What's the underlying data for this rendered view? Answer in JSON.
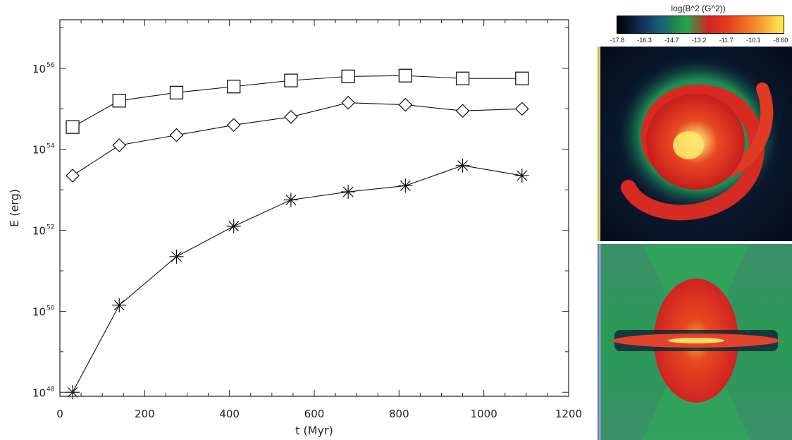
{
  "chart_data": {
    "type": "line",
    "xlabel": "t (Myr)",
    "ylabel": "E (erg)",
    "xlim": [
      0,
      1200
    ],
    "ylim_log10": [
      47.9,
      57.2
    ],
    "yscale": "log",
    "x_ticks": [
      "0",
      "200",
      "400",
      "600",
      "800",
      "1000",
      "1200"
    ],
    "y_ticks": [
      {
        "base": "10",
        "exp": "48"
      },
      {
        "base": "10",
        "exp": "50"
      },
      {
        "base": "10",
        "exp": "52"
      },
      {
        "base": "10",
        "exp": "54"
      },
      {
        "base": "10",
        "exp": "56"
      }
    ],
    "x": [
      30,
      140,
      275,
      410,
      545,
      680,
      815,
      950,
      1090
    ],
    "series": [
      {
        "marker": "square",
        "log10_values": [
          54.55,
          55.2,
          55.4,
          55.55,
          55.7,
          55.8,
          55.82,
          55.75,
          55.75
        ]
      },
      {
        "marker": "diamond",
        "log10_values": [
          53.35,
          54.1,
          54.35,
          54.6,
          54.8,
          55.15,
          55.1,
          54.95,
          55.0
        ]
      },
      {
        "marker": "asterisk",
        "log10_values": [
          48.0,
          50.15,
          51.35,
          52.1,
          52.75,
          52.95,
          53.1,
          53.6,
          53.35
        ]
      }
    ],
    "grid": false,
    "legend": "none"
  },
  "colorbar": {
    "title": "log(B^2 (G^2))",
    "ticks": [
      "-17.8",
      "-16.3",
      "-14.7",
      "-13.2",
      "-11.7",
      "-10.1",
      "-8.60"
    ]
  },
  "panels": {
    "top": "face-on map",
    "bottom": "edge-on map"
  }
}
